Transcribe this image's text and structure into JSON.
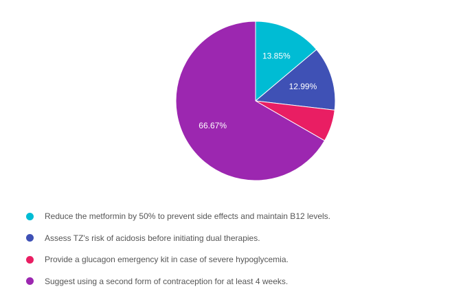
{
  "chart_data": {
    "type": "pie",
    "title": "",
    "slices": [
      {
        "label": "Reduce the metformin by 50% to prevent side effects and maintain B12 levels.",
        "value": 13.85,
        "display": "13.85%",
        "color": "#00BCD4"
      },
      {
        "label": "Assess TZ's risk of acidosis before initiating dual therapies.",
        "value": 12.99,
        "display": "12.99%",
        "color": "#3F51B5"
      },
      {
        "label": "Provide a glucagon emergency kit in case of severe hypoglycemia.",
        "value": 6.49,
        "display": "",
        "color": "#E91E63"
      },
      {
        "label": "Suggest using a second form of contraception for at least 4 weeks.",
        "value": 66.67,
        "display": "66.67%",
        "color": "#9C27B0"
      }
    ],
    "legend_position": "bottom",
    "start_angle": "top",
    "direction": "clockwise"
  }
}
